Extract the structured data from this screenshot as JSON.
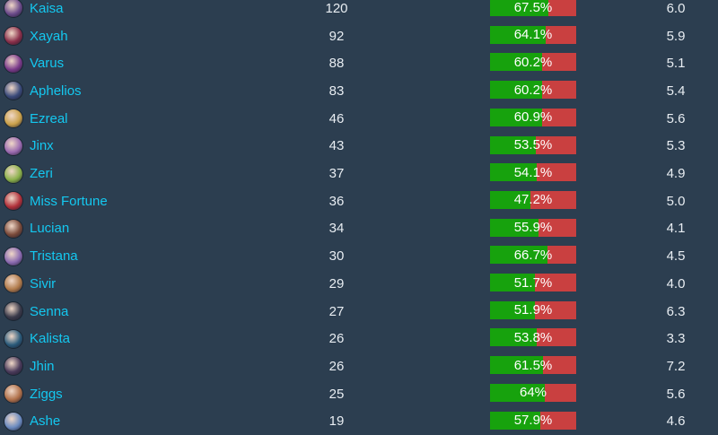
{
  "rows": [
    {
      "champion": "Kaisa",
      "games": "120",
      "winrate": "67.5%",
      "winrate_value": 67.5,
      "avg": "6.0",
      "avatar_color": "#6b4a8a"
    },
    {
      "champion": "Xayah",
      "games": "92",
      "winrate": "64.1%",
      "winrate_value": 64.1,
      "avg": "5.9",
      "avatar_color": "#8a2f4a"
    },
    {
      "champion": "Varus",
      "games": "88",
      "winrate": "60.2%",
      "winrate_value": 60.2,
      "avg": "5.1",
      "avatar_color": "#7a3a8a"
    },
    {
      "champion": "Aphelios",
      "games": "83",
      "winrate": "60.2%",
      "winrate_value": 60.2,
      "avg": "5.4",
      "avatar_color": "#3a4a7a"
    },
    {
      "champion": "Ezreal",
      "games": "46",
      "winrate": "60.9%",
      "winrate_value": 60.9,
      "avg": "5.6",
      "avatar_color": "#c9a04a"
    },
    {
      "champion": "Jinx",
      "games": "43",
      "winrate": "53.5%",
      "winrate_value": 53.5,
      "avg": "5.3",
      "avatar_color": "#9a6ab0"
    },
    {
      "champion": "Zeri",
      "games": "37",
      "winrate": "54.1%",
      "winrate_value": 54.1,
      "avg": "4.9",
      "avatar_color": "#8ab04a"
    },
    {
      "champion": "Miss Fortune",
      "games": "36",
      "winrate": "47.2%",
      "winrate_value": 47.2,
      "avg": "5.0",
      "avatar_color": "#b0303a"
    },
    {
      "champion": "Lucian",
      "games": "34",
      "winrate": "55.9%",
      "winrate_value": 55.9,
      "avg": "4.1",
      "avatar_color": "#7a4a3a"
    },
    {
      "champion": "Tristana",
      "games": "30",
      "winrate": "66.7%",
      "winrate_value": 66.7,
      "avg": "4.5",
      "avatar_color": "#8a6ab0"
    },
    {
      "champion": "Sivir",
      "games": "29",
      "winrate": "51.7%",
      "winrate_value": 51.7,
      "avg": "4.0",
      "avatar_color": "#b07a4a"
    },
    {
      "champion": "Senna",
      "games": "27",
      "winrate": "51.9%",
      "winrate_value": 51.9,
      "avg": "6.3",
      "avatar_color": "#3a3a4a"
    },
    {
      "champion": "Kalista",
      "games": "26",
      "winrate": "53.8%",
      "winrate_value": 53.8,
      "avg": "3.3",
      "avatar_color": "#2a5a7a"
    },
    {
      "champion": "Jhin",
      "games": "26",
      "winrate": "61.5%",
      "winrate_value": 61.5,
      "avg": "7.2",
      "avatar_color": "#4a3a5a"
    },
    {
      "champion": "Ziggs",
      "games": "25",
      "winrate": "64%",
      "winrate_value": 64.0,
      "avg": "5.6",
      "avatar_color": "#b0704a"
    },
    {
      "champion": "Ashe",
      "games": "19",
      "winrate": "57.9%",
      "winrate_value": 57.9,
      "avg": "4.6",
      "avatar_color": "#6a8ac0"
    }
  ],
  "colors": {
    "background": "#2c3e50",
    "champion_name": "#14c8f0",
    "win": "#17a20d",
    "loss": "#c94040"
  }
}
